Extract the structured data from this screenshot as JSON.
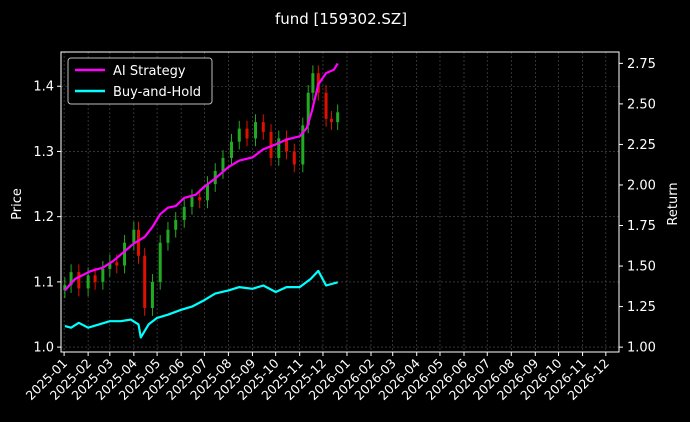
{
  "chart_data": {
    "type": "line",
    "title": "fund [159302.SZ]",
    "ylabel_left": "Price",
    "ylabel_right": "Return",
    "grid": true,
    "legend_position": "top-left",
    "x_ticks": [
      "2025-01",
      "2025-02",
      "2025-03",
      "2025-04",
      "2025-05",
      "2025-06",
      "2025-07",
      "2025-08",
      "2025-09",
      "2025-10",
      "2025-11",
      "2025-12",
      "2026-01",
      "2026-02",
      "2026-03",
      "2026-04",
      "2026-05",
      "2026-06",
      "2026-07",
      "2026-08",
      "2026-09",
      "2026-10",
      "2026-11",
      "2026-12"
    ],
    "xlim": [
      "2024-12-28",
      "2026-12-18"
    ],
    "left_axis": {
      "ylim": [
        0.9925,
        1.4525
      ],
      "ticks": [
        "1.0",
        "1.1",
        "1.2",
        "1.3",
        "1.4"
      ],
      "tick_values": [
        1.0,
        1.1,
        1.2,
        1.3,
        1.4
      ]
    },
    "right_axis": {
      "ylim": [
        0.97,
        2.82
      ],
      "ticks": [
        "1.00",
        "1.25",
        "1.50",
        "1.75",
        "2.00",
        "2.25",
        "2.50",
        "2.75"
      ],
      "tick_values": [
        1.0,
        1.25,
        1.5,
        1.75,
        2.0,
        2.25,
        2.5,
        2.75
      ]
    },
    "colors": {
      "ai_strategy": "#ff00ff",
      "buy_and_hold": "#00ffff",
      "up_candle": "#22aa22",
      "down_candle": "#dd1100",
      "grid": "#555555"
    },
    "series": [
      {
        "name": "AI Strategy",
        "axis": "right",
        "x": [
          "2025-01-02",
          "2025-01-15",
          "2025-02-05",
          "2025-02-20",
          "2025-03-05",
          "2025-03-20",
          "2025-04-01",
          "2025-04-15",
          "2025-04-25",
          "2025-05-05",
          "2025-05-15",
          "2025-05-25",
          "2025-06-05",
          "2025-06-20",
          "2025-07-01",
          "2025-07-15",
          "2025-08-01",
          "2025-08-15",
          "2025-09-01",
          "2025-09-15",
          "2025-10-01",
          "2025-10-15",
          "2025-11-01",
          "2025-11-10",
          "2025-11-17",
          "2025-11-25",
          "2025-12-05",
          "2025-12-15",
          "2025-12-20"
        ],
        "values": [
          1.35,
          1.42,
          1.47,
          1.49,
          1.53,
          1.59,
          1.64,
          1.68,
          1.74,
          1.82,
          1.86,
          1.87,
          1.92,
          1.94,
          1.99,
          2.04,
          2.11,
          2.15,
          2.17,
          2.22,
          2.25,
          2.28,
          2.3,
          2.35,
          2.46,
          2.62,
          2.69,
          2.71,
          2.75
        ]
      },
      {
        "name": "Buy-and-Hold",
        "axis": "right",
        "x": [
          "2025-01-02",
          "2025-01-10",
          "2025-01-20",
          "2025-02-01",
          "2025-02-15",
          "2025-03-01",
          "2025-03-15",
          "2025-03-28",
          "2025-04-07",
          "2025-04-10",
          "2025-04-20",
          "2025-05-01",
          "2025-05-15",
          "2025-06-01",
          "2025-06-15",
          "2025-07-01",
          "2025-07-15",
          "2025-08-01",
          "2025-08-15",
          "2025-09-01",
          "2025-09-15",
          "2025-10-01",
          "2025-10-15",
          "2025-11-01",
          "2025-11-15",
          "2025-11-25",
          "2025-12-05",
          "2025-12-20"
        ],
        "values": [
          1.13,
          1.12,
          1.15,
          1.12,
          1.14,
          1.16,
          1.16,
          1.17,
          1.14,
          1.06,
          1.14,
          1.18,
          1.2,
          1.23,
          1.25,
          1.29,
          1.33,
          1.35,
          1.37,
          1.36,
          1.38,
          1.34,
          1.37,
          1.37,
          1.42,
          1.47,
          1.38,
          1.4
        ]
      }
    ],
    "price_candles": {
      "axis": "left",
      "x": [
        "2025-01-02",
        "2025-01-10",
        "2025-01-20",
        "2025-02-01",
        "2025-02-10",
        "2025-02-20",
        "2025-03-01",
        "2025-03-10",
        "2025-03-20",
        "2025-04-01",
        "2025-04-07",
        "2025-04-15",
        "2025-04-25",
        "2025-05-05",
        "2025-05-15",
        "2025-05-25",
        "2025-06-05",
        "2025-06-15",
        "2025-06-25",
        "2025-07-05",
        "2025-07-15",
        "2025-07-25",
        "2025-08-05",
        "2025-08-15",
        "2025-08-25",
        "2025-09-05",
        "2025-09-15",
        "2025-09-25",
        "2025-10-05",
        "2025-10-15",
        "2025-10-25",
        "2025-11-05",
        "2025-11-12",
        "2025-11-18",
        "2025-11-25",
        "2025-12-05",
        "2025-12-12",
        "2025-12-20"
      ],
      "close": [
        1.095,
        1.115,
        1.09,
        1.11,
        1.1,
        1.12,
        1.13,
        1.125,
        1.16,
        1.18,
        1.14,
        1.06,
        1.1,
        1.16,
        1.18,
        1.195,
        1.215,
        1.23,
        1.225,
        1.25,
        1.27,
        1.29,
        1.315,
        1.335,
        1.32,
        1.345,
        1.33,
        1.29,
        1.32,
        1.3,
        1.28,
        1.34,
        1.39,
        1.42,
        1.39,
        1.35,
        1.345,
        1.36
      ]
    }
  }
}
